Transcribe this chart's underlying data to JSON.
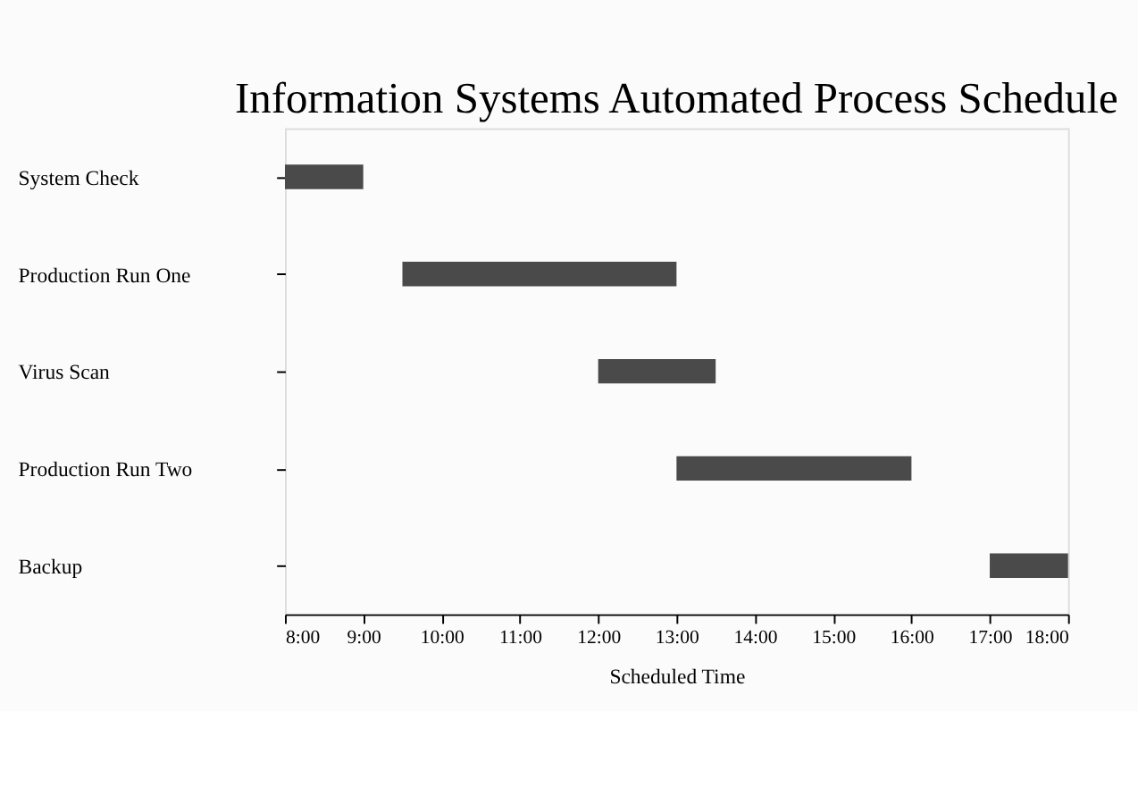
{
  "chart_data": {
    "type": "bar",
    "orientation": "horizontal",
    "title": "Information Systems Automated Process Schedule",
    "xlabel": "Scheduled Time",
    "categories": [
      "System Check",
      "Production Run One",
      "Virus Scan",
      "Production Run Two",
      "Backup"
    ],
    "base": [
      8,
      9.5,
      12,
      13,
      17
    ],
    "values": [
      1,
      3.5,
      1.5,
      3,
      1
    ],
    "color": "#4a4a4a",
    "xlim": [
      8,
      18
    ],
    "xticks": [
      {
        "value": 8,
        "label": "8:00"
      },
      {
        "value": 9,
        "label": "9:00"
      },
      {
        "value": 10,
        "label": "10:00"
      },
      {
        "value": 11,
        "label": "11:00"
      },
      {
        "value": 12,
        "label": "12:00"
      },
      {
        "value": 13,
        "label": "13:00"
      },
      {
        "value": 14,
        "label": "14:00"
      },
      {
        "value": 15,
        "label": "15:00"
      },
      {
        "value": 16,
        "label": "16:00"
      },
      {
        "value": 17,
        "label": "17:00"
      },
      {
        "value": 18,
        "label": "18:00"
      }
    ],
    "grid": false
  }
}
